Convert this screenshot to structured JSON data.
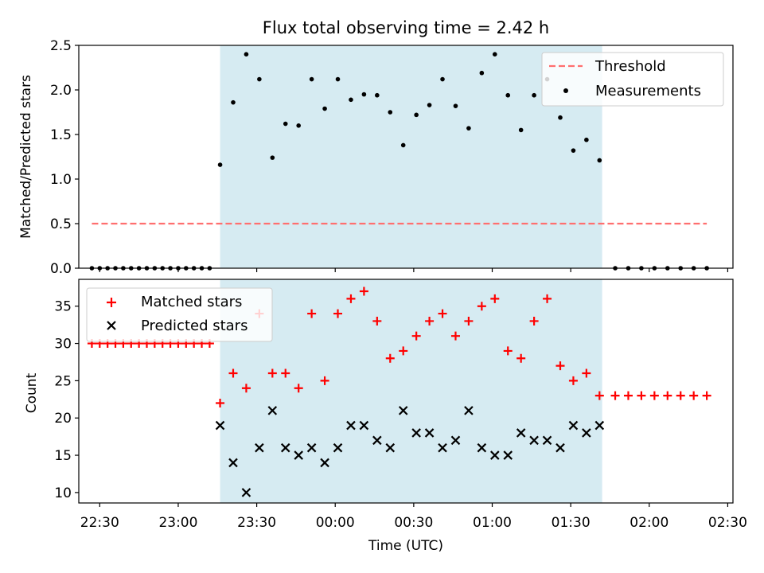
{
  "figure": {
    "title": "Flux total observing time = 2.42 h"
  },
  "chart_data": [
    {
      "type": "scatter",
      "panel": "top",
      "title": "Flux total observing time = 2.42 h",
      "xlabel": "",
      "ylabel": "Matched/Predicted stars",
      "xlim": [
        "22:22",
        "02:32"
      ],
      "ylim": [
        0,
        2.5
      ],
      "yticks": [
        "0.0",
        "0.5",
        "1.0",
        "1.5",
        "2.0",
        "2.5"
      ],
      "shaded_region": {
        "start": "23:16",
        "end": "01:42",
        "color": "#add8e6"
      },
      "threshold": {
        "name": "Threshold",
        "value": 0.5,
        "x_start": "22:27",
        "x_end": "02:22",
        "color": "#ff6f6f",
        "style": "dashed"
      },
      "series": [
        {
          "name": "Measurements",
          "marker": "dot",
          "color": "#000000",
          "x": [
            "22:27",
            "22:30",
            "22:33",
            "22:36",
            "22:39",
            "22:42",
            "22:45",
            "22:48",
            "22:51",
            "22:54",
            "22:57",
            "23:00",
            "23:03",
            "23:06",
            "23:09",
            "23:12",
            "23:16",
            "23:21",
            "23:26",
            "23:31",
            "23:36",
            "23:41",
            "23:46",
            "23:51",
            "23:56",
            "00:01",
            "00:06",
            "00:11",
            "00:16",
            "00:21",
            "00:26",
            "00:31",
            "00:36",
            "00:41",
            "00:46",
            "00:51",
            "00:56",
            "01:01",
            "01:06",
            "01:11",
            "01:16",
            "01:21",
            "01:26",
            "01:31",
            "01:36",
            "01:41",
            "01:47",
            "01:52",
            "01:57",
            "02:02",
            "02:07",
            "02:12",
            "02:17",
            "02:22"
          ],
          "y": [
            0,
            0,
            0,
            0,
            0,
            0,
            0,
            0,
            0,
            0,
            0,
            0,
            0,
            0,
            0,
            0,
            1.16,
            1.86,
            2.4,
            2.12,
            1.24,
            1.62,
            1.6,
            2.12,
            1.79,
            2.12,
            1.89,
            1.95,
            1.94,
            1.75,
            1.38,
            1.72,
            1.83,
            2.12,
            1.82,
            1.57,
            2.19,
            2.4,
            1.94,
            1.55,
            1.94,
            2.12,
            1.69,
            1.32,
            1.44,
            1.21,
            0,
            0,
            0,
            0,
            0,
            0,
            0,
            0
          ]
        }
      ],
      "legend": {
        "position": "top-right",
        "entries": [
          "Threshold",
          "Measurements"
        ]
      }
    },
    {
      "type": "scatter",
      "panel": "bottom",
      "xlabel": "Time (UTC)",
      "ylabel": "Count",
      "xlim": [
        "22:22",
        "02:32"
      ],
      "ylim": [
        8.6,
        38.6
      ],
      "xticks": [
        "22:30",
        "23:00",
        "23:30",
        "00:00",
        "00:30",
        "01:00",
        "01:30",
        "02:00",
        "02:30"
      ],
      "yticks": [
        "10",
        "15",
        "20",
        "25",
        "30",
        "35"
      ],
      "shaded_region": {
        "start": "23:16",
        "end": "01:42",
        "color": "#add8e6"
      },
      "series": [
        {
          "name": "Matched stars",
          "marker": "plus",
          "color": "#ff0000",
          "x": [
            "22:27",
            "22:30",
            "22:33",
            "22:36",
            "22:39",
            "22:42",
            "22:45",
            "22:48",
            "22:51",
            "22:54",
            "22:57",
            "23:00",
            "23:03",
            "23:06",
            "23:09",
            "23:12",
            "23:16",
            "23:21",
            "23:26",
            "23:31",
            "23:36",
            "23:41",
            "23:46",
            "23:51",
            "23:56",
            "00:01",
            "00:06",
            "00:11",
            "00:16",
            "00:21",
            "00:26",
            "00:31",
            "00:36",
            "00:41",
            "00:46",
            "00:51",
            "00:56",
            "01:01",
            "01:06",
            "01:11",
            "01:16",
            "01:21",
            "01:26",
            "01:31",
            "01:36",
            "01:41",
            "01:47",
            "01:52",
            "01:57",
            "02:02",
            "02:07",
            "02:12",
            "02:17",
            "02:22"
          ],
          "y": [
            30,
            30,
            30,
            30,
            30,
            30,
            30,
            30,
            30,
            30,
            30,
            30,
            30,
            30,
            30,
            30,
            22,
            26,
            24,
            34,
            26,
            26,
            24,
            34,
            25,
            34,
            36,
            37,
            33,
            28,
            29,
            31,
            33,
            34,
            31,
            33,
            35,
            36,
            29,
            28,
            33,
            36,
            27,
            25,
            26,
            23,
            23,
            23,
            23,
            23,
            23,
            23,
            23,
            23
          ]
        },
        {
          "name": "Predicted stars",
          "marker": "x",
          "color": "#000000",
          "x": [
            "23:16",
            "23:21",
            "23:26",
            "23:31",
            "23:36",
            "23:41",
            "23:46",
            "23:51",
            "23:56",
            "00:01",
            "00:06",
            "00:11",
            "00:16",
            "00:21",
            "00:26",
            "00:31",
            "00:36",
            "00:41",
            "00:46",
            "00:51",
            "00:56",
            "01:01",
            "01:06",
            "01:11",
            "01:16",
            "01:21",
            "01:26",
            "01:31",
            "01:36",
            "01:41"
          ],
          "y": [
            19,
            14,
            10,
            16,
            21,
            16,
            15,
            16,
            14,
            16,
            19,
            19,
            17,
            16,
            21,
            18,
            18,
            16,
            17,
            21,
            16,
            15,
            15,
            18,
            17,
            17,
            16,
            19,
            18,
            19
          ]
        }
      ],
      "legend": {
        "position": "top-left",
        "entries": [
          "Matched stars",
          "Predicted stars"
        ]
      }
    }
  ]
}
